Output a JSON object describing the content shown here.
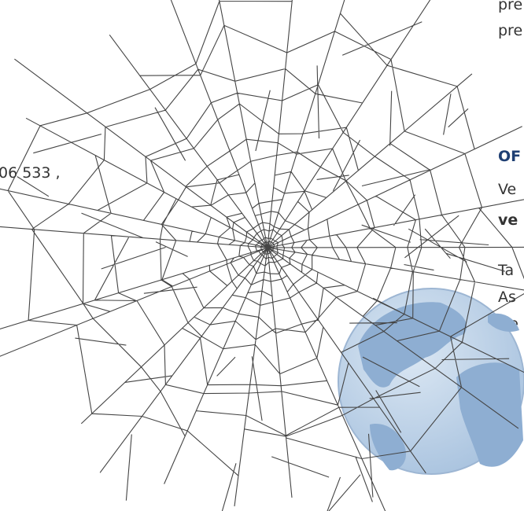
{
  "left_text": "06 533 ,",
  "right_column": {
    "top_lines": [
      "pre",
      "pre"
    ],
    "heading": "OF",
    "paragraph_1": [
      "Ve",
      "ve"
    ],
    "paragraph_2": [
      "Ta",
      "As",
      "He"
    ]
  }
}
